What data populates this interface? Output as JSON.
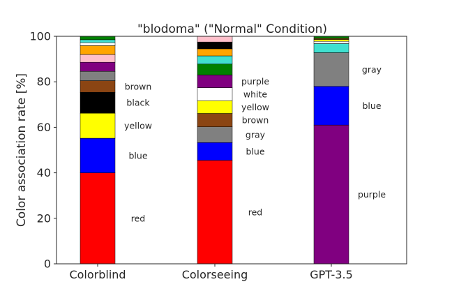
{
  "chart_data": {
    "type": "bar",
    "stacked": true,
    "title": "\"blodoma\" (\"Normal\" Condition)",
    "xlabel": "",
    "ylabel": "Color association rate [%]",
    "ylim": [
      0,
      100
    ],
    "yticks": [
      0,
      20,
      40,
      60,
      80,
      100
    ],
    "grid": false,
    "categories": [
      "Colorblind",
      "Colorseeing",
      "GPT-3.5"
    ],
    "bars": [
      {
        "category": "Colorblind",
        "segments": [
          {
            "label": "red",
            "color": "#ff0000",
            "value": 40.0,
            "labeled": true
          },
          {
            "label": "blue",
            "color": "#0000ff",
            "value": 15.2,
            "labeled": true
          },
          {
            "label": "yellow",
            "color": "#ffff00",
            "value": 11.0,
            "labeled": true
          },
          {
            "label": "black",
            "color": "#000000",
            "value": 9.2,
            "labeled": true
          },
          {
            "label": "brown",
            "color": "#8b4513",
            "value": 5.1,
            "labeled": true
          },
          {
            "label": "gray",
            "color": "#808080",
            "value": 4.1,
            "labeled": false
          },
          {
            "label": "purple",
            "color": "#800080",
            "value": 4.0,
            "labeled": false
          },
          {
            "label": "pink",
            "color": "#ffc0cb",
            "value": 3.4,
            "labeled": false
          },
          {
            "label": "orange",
            "color": "#ffa500",
            "value": 3.9,
            "labeled": false
          },
          {
            "label": "white",
            "color": "#ffffff",
            "value": 1.3,
            "labeled": false
          },
          {
            "label": "turquoise",
            "color": "#40e0d0",
            "value": 1.3,
            "labeled": false
          },
          {
            "label": "green",
            "color": "#008000",
            "value": 1.5,
            "labeled": false
          }
        ]
      },
      {
        "category": "Colorseeing",
        "segments": [
          {
            "label": "red",
            "color": "#ff0000",
            "value": 45.5,
            "labeled": true
          },
          {
            "label": "blue",
            "color": "#0000ff",
            "value": 7.8,
            "labeled": true
          },
          {
            "label": "gray",
            "color": "#808080",
            "value": 6.9,
            "labeled": true
          },
          {
            "label": "brown",
            "color": "#8b4513",
            "value": 5.9,
            "labeled": true
          },
          {
            "label": "yellow",
            "color": "#ffff00",
            "value": 5.6,
            "labeled": true
          },
          {
            "label": "white",
            "color": "#ffffff",
            "value": 5.7,
            "labeled": true
          },
          {
            "label": "purple",
            "color": "#800080",
            "value": 5.6,
            "labeled": true
          },
          {
            "label": "green",
            "color": "#008000",
            "value": 4.8,
            "labeled": false
          },
          {
            "label": "turquoise",
            "color": "#40e0d0",
            "value": 3.6,
            "labeled": false
          },
          {
            "label": "orange",
            "color": "#ffa500",
            "value": 3.1,
            "labeled": false
          },
          {
            "label": "black",
            "color": "#000000",
            "value": 3.0,
            "labeled": false
          },
          {
            "label": "pink",
            "color": "#ffc0cb",
            "value": 2.5,
            "labeled": false
          }
        ]
      },
      {
        "category": "GPT-3.5",
        "segments": [
          {
            "label": "purple",
            "color": "#800080",
            "value": 61.0,
            "labeled": true
          },
          {
            "label": "blue",
            "color": "#0000ff",
            "value": 17.0,
            "labeled": true
          },
          {
            "label": "gray",
            "color": "#808080",
            "value": 14.8,
            "labeled": true
          },
          {
            "label": "turquoise",
            "color": "#40e0d0",
            "value": 4.0,
            "labeled": false
          },
          {
            "label": "white",
            "color": "#ffffff",
            "value": 1.0,
            "labeled": false
          },
          {
            "label": "yellow",
            "color": "#ffff00",
            "value": 0.8,
            "labeled": false
          },
          {
            "label": "brown",
            "color": "#8b4513",
            "value": 0.5,
            "labeled": false
          },
          {
            "label": "green",
            "color": "#008000",
            "value": 0.9,
            "labeled": false
          }
        ]
      }
    ]
  }
}
